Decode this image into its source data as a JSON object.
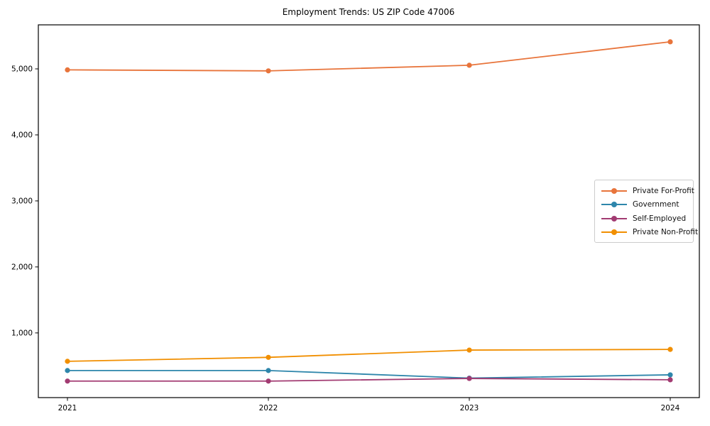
{
  "chart_data": {
    "type": "line",
    "title": "Employment Trends: US ZIP Code 47006",
    "categories": [
      "2021",
      "2022",
      "2023",
      "2024"
    ],
    "series": [
      {
        "name": "Private For-Profit",
        "color": "#E8743B",
        "values": [
          4985,
          4970,
          5055,
          5410
        ]
      },
      {
        "name": "Government",
        "color": "#2E86AB",
        "values": [
          430,
          430,
          315,
          365
        ]
      },
      {
        "name": "Self-Employed",
        "color": "#A23B72",
        "values": [
          270,
          270,
          310,
          290
        ]
      },
      {
        "name": "Private Non-Profit",
        "color": "#F18F01",
        "values": [
          570,
          630,
          740,
          750
        ]
      }
    ],
    "xlabel": "",
    "ylabel": "",
    "ylim": [
      20,
      5667
    ],
    "yticks": {
      "values": [
        1000,
        2000,
        3000,
        4000,
        5000
      ],
      "labels": [
        "1,000",
        "2,000",
        "3,000",
        "4,000",
        "5,000"
      ]
    },
    "grid": false,
    "marker": "o",
    "legend_position": "center right",
    "axis_color": "#000000",
    "legend_border_color": "#cccccc"
  }
}
